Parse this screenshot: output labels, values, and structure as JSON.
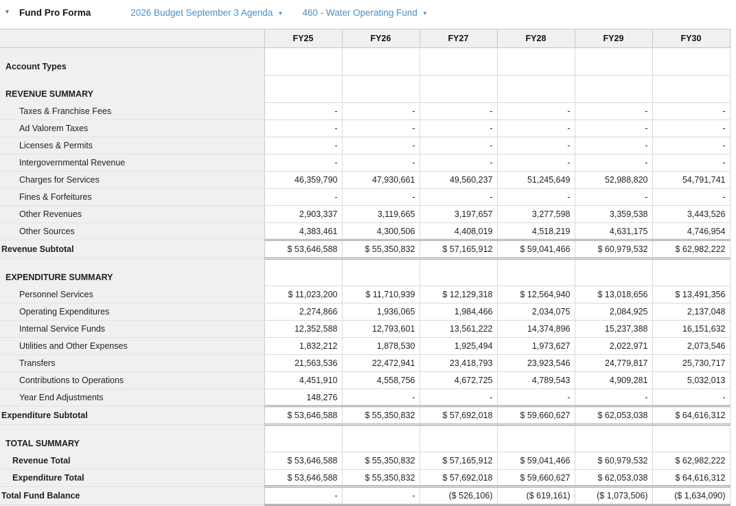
{
  "header": {
    "collapse_icon": "▾",
    "title": "Fund Pro Forma",
    "budget_dropdown": {
      "label": "2026 Budget September 3 Agenda",
      "caret": "▼"
    },
    "fund_dropdown": {
      "label": "460 - Water Operating Fund",
      "caret": "▼"
    }
  },
  "ui_colors": {
    "link_blue": "#4a90c6",
    "header_gray": "#f0f0f0",
    "grid_line": "#d9d9d9",
    "double_rule": "#999999"
  },
  "chart_data": {
    "type": "table",
    "title": "Fund Pro Forma",
    "categories": [
      "FY25",
      "FY26",
      "FY27",
      "FY28",
      "FY29",
      "FY30"
    ],
    "series": [
      {
        "name": "Charges for Services",
        "values": [
          46359790,
          47930661,
          49560237,
          51245649,
          52988820,
          54791741
        ]
      },
      {
        "name": "Other Revenues",
        "values": [
          2903337,
          3119665,
          3197657,
          3277598,
          3359538,
          3443526
        ]
      },
      {
        "name": "Other Sources",
        "values": [
          4383461,
          4300506,
          4408019,
          4518219,
          4631175,
          4746954
        ]
      },
      {
        "name": "Revenue Subtotal",
        "values": [
          53646588,
          55350832,
          57165912,
          59041466,
          60979532,
          62982222
        ]
      },
      {
        "name": "Personnel Services",
        "values": [
          11023200,
          11710939,
          12129318,
          12564940,
          13018656,
          13491356
        ]
      },
      {
        "name": "Operating Expenditures",
        "values": [
          2274866,
          1936065,
          1984466,
          2034075,
          2084925,
          2137048
        ]
      },
      {
        "name": "Internal Service Funds",
        "values": [
          12352588,
          12793601,
          13561222,
          14374896,
          15237388,
          16151632
        ]
      },
      {
        "name": "Utilities and Other Expenses",
        "values": [
          1832212,
          1878530,
          1925494,
          1973627,
          2022971,
          2073546
        ]
      },
      {
        "name": "Transfers",
        "values": [
          21563536,
          22472941,
          23418793,
          23923546,
          24779817,
          25730717
        ]
      },
      {
        "name": "Contributions to Operations",
        "values": [
          4451910,
          4558756,
          4672725,
          4789543,
          4909281,
          5032013
        ]
      },
      {
        "name": "Year End Adjustments",
        "values": [
          148276,
          0,
          0,
          0,
          0,
          0
        ]
      },
      {
        "name": "Expenditure Subtotal",
        "values": [
          53646588,
          55350832,
          57692018,
          59660627,
          62053038,
          64616312
        ]
      },
      {
        "name": "Total Fund Balance",
        "values": [
          0,
          0,
          -526106,
          -619161,
          -1073506,
          -1634090
        ]
      }
    ]
  },
  "table": {
    "columns": [
      "FY25",
      "FY26",
      "FY27",
      "FY28",
      "FY29",
      "FY30"
    ],
    "rows": [
      {
        "label": "Account Types",
        "type": "section",
        "values": [
          "",
          "",
          "",
          "",
          "",
          ""
        ]
      },
      {
        "label": "REVENUE SUMMARY",
        "type": "section",
        "values": [
          "",
          "",
          "",
          "",
          "",
          ""
        ]
      },
      {
        "label": "Taxes & Franchise Fees",
        "type": "detail",
        "values": [
          "-",
          "-",
          "-",
          "-",
          "-",
          "-"
        ]
      },
      {
        "label": "Ad Valorem Taxes",
        "type": "detail",
        "values": [
          "-",
          "-",
          "-",
          "-",
          "-",
          "-"
        ]
      },
      {
        "label": "Licenses & Permits",
        "type": "detail",
        "values": [
          "-",
          "-",
          "-",
          "-",
          "-",
          "-"
        ]
      },
      {
        "label": "Intergovernmental Revenue",
        "type": "detail",
        "values": [
          "-",
          "-",
          "-",
          "-",
          "-",
          "-"
        ]
      },
      {
        "label": "Charges for Services",
        "type": "detail",
        "values": [
          "46,359,790",
          "47,930,661",
          "49,560,237",
          "51,245,649",
          "52,988,820",
          "54,791,741"
        ]
      },
      {
        "label": "Fines & Forfeitures",
        "type": "detail",
        "values": [
          "-",
          "-",
          "-",
          "-",
          "-",
          "-"
        ]
      },
      {
        "label": "Other Revenues",
        "type": "detail",
        "values": [
          "2,903,337",
          "3,119,665",
          "3,197,657",
          "3,277,598",
          "3,359,538",
          "3,443,526"
        ]
      },
      {
        "label": "Other Sources",
        "type": "detail",
        "values": [
          "4,383,461",
          "4,300,506",
          "4,408,019",
          "4,518,219",
          "4,631,175",
          "4,746,954"
        ]
      },
      {
        "label": "Revenue Subtotal",
        "type": "subtotal",
        "values": [
          "$ 53,646,588",
          "$ 55,350,832",
          "$ 57,165,912",
          "$ 59,041,466",
          "$ 60,979,532",
          "$ 62,982,222"
        ]
      },
      {
        "label": "EXPENDITURE SUMMARY",
        "type": "section",
        "values": [
          "",
          "",
          "",
          "",
          "",
          ""
        ]
      },
      {
        "label": "Personnel Services",
        "type": "detail",
        "values": [
          "$ 11,023,200",
          "$ 11,710,939",
          "$ 12,129,318",
          "$ 12,564,940",
          "$ 13,018,656",
          "$ 13,491,356"
        ]
      },
      {
        "label": "Operating Expenditures",
        "type": "detail",
        "values": [
          "2,274,866",
          "1,936,065",
          "1,984,466",
          "2,034,075",
          "2,084,925",
          "2,137,048"
        ]
      },
      {
        "label": "Internal Service Funds",
        "type": "detail",
        "values": [
          "12,352,588",
          "12,793,601",
          "13,561,222",
          "14,374,896",
          "15,237,388",
          "16,151,632"
        ]
      },
      {
        "label": "Utilities and Other Expenses",
        "type": "detail",
        "values": [
          "1,832,212",
          "1,878,530",
          "1,925,494",
          "1,973,627",
          "2,022,971",
          "2,073,546"
        ]
      },
      {
        "label": "Transfers",
        "type": "detail",
        "values": [
          "21,563,536",
          "22,472,941",
          "23,418,793",
          "23,923,546",
          "24,779,817",
          "25,730,717"
        ]
      },
      {
        "label": "Contributions to Operations",
        "type": "detail",
        "values": [
          "4,451,910",
          "4,558,756",
          "4,672,725",
          "4,789,543",
          "4,909,281",
          "5,032,013"
        ]
      },
      {
        "label": "Year End Adjustments",
        "type": "detail",
        "values": [
          "148,276",
          "-",
          "-",
          "-",
          "-",
          "-"
        ]
      },
      {
        "label": "Expenditure Subtotal",
        "type": "subtotal",
        "values": [
          "$ 53,646,588",
          "$ 55,350,832",
          "$ 57,692,018",
          "$ 59,660,627",
          "$ 62,053,038",
          "$ 64,616,312"
        ]
      },
      {
        "label": "TOTAL SUMMARY",
        "type": "section",
        "values": [
          "",
          "",
          "",
          "",
          "",
          ""
        ]
      },
      {
        "label": "Revenue Total",
        "type": "total_first",
        "values": [
          "$ 53,646,588",
          "$ 55,350,832",
          "$ 57,165,912",
          "$ 59,041,466",
          "$ 60,979,532",
          "$ 62,982,222"
        ]
      },
      {
        "label": "Expenditure Total",
        "type": "total_last",
        "values": [
          "$ 53,646,588",
          "$ 55,350,832",
          "$ 57,692,018",
          "$ 59,660,627",
          "$ 62,053,038",
          "$ 64,616,312"
        ]
      },
      {
        "label": "Total Fund Balance",
        "type": "grand",
        "values": [
          "-",
          "-",
          "($ 526,106)",
          "($ 619,161)",
          "($ 1,073,506)",
          "($ 1,634,090)"
        ]
      }
    ]
  }
}
